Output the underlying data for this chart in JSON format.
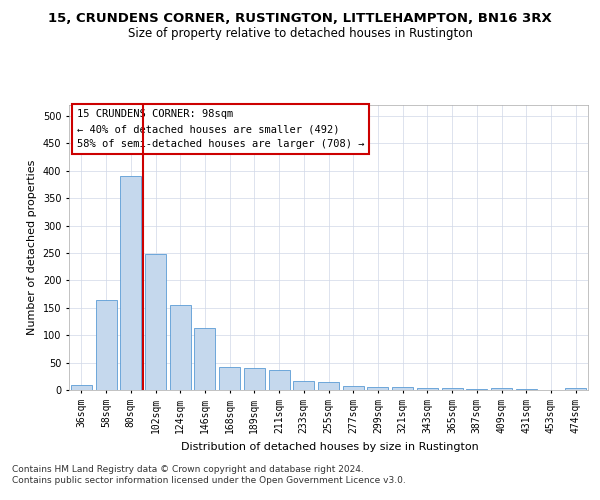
{
  "title": "15, CRUNDENS CORNER, RUSTINGTON, LITTLEHAMPTON, BN16 3RX",
  "subtitle": "Size of property relative to detached houses in Rustington",
  "xlabel": "Distribution of detached houses by size in Rustington",
  "ylabel": "Number of detached properties",
  "categories": [
    "36sqm",
    "58sqm",
    "80sqm",
    "102sqm",
    "124sqm",
    "146sqm",
    "168sqm",
    "189sqm",
    "211sqm",
    "233sqm",
    "255sqm",
    "277sqm",
    "299sqm",
    "321sqm",
    "343sqm",
    "365sqm",
    "387sqm",
    "409sqm",
    "431sqm",
    "453sqm",
    "474sqm"
  ],
  "values": [
    10,
    165,
    390,
    248,
    155,
    113,
    42,
    40,
    37,
    17,
    14,
    8,
    6,
    5,
    3,
    3,
    1,
    3,
    1,
    0,
    3
  ],
  "bar_color": "#c5d8ed",
  "bar_edge_color": "#5b9bd5",
  "vline_color": "#cc0000",
  "annotation_line1": "15 CRUNDENS CORNER: 98sqm",
  "annotation_line2": "← 40% of detached houses are smaller (492)",
  "annotation_line3": "58% of semi-detached houses are larger (708) →",
  "annotation_box_color": "#cc0000",
  "ylim": [
    0,
    520
  ],
  "yticks": [
    0,
    50,
    100,
    150,
    200,
    250,
    300,
    350,
    400,
    450,
    500
  ],
  "footnote1": "Contains HM Land Registry data © Crown copyright and database right 2024.",
  "footnote2": "Contains public sector information licensed under the Open Government Licence v3.0.",
  "title_fontsize": 9.5,
  "subtitle_fontsize": 8.5,
  "xlabel_fontsize": 8,
  "ylabel_fontsize": 8,
  "tick_fontsize": 7,
  "annotation_fontsize": 7.5,
  "footnote_fontsize": 6.5,
  "background_color": "#ffffff",
  "grid_color": "#d0d8e8"
}
